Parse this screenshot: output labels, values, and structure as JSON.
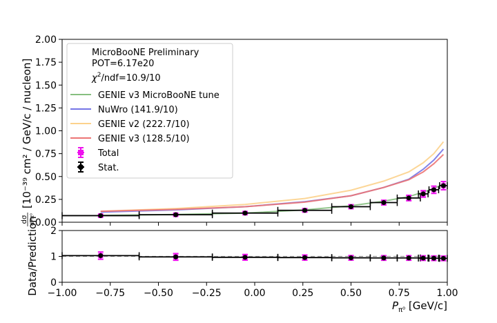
{
  "chart_data": [
    {
      "type": "line",
      "panel": "main",
      "ylabel_frac_num": "dσ",
      "ylabel_frac_den": "dPπ⁰",
      "ylabel_units": "[10⁻³⁹ cm² / GeV/c / nucleon]",
      "xlim": [
        -1.0,
        1.0
      ],
      "ylim": [
        0.0,
        2.0
      ],
      "xticks": [
        "−1.00",
        "−0.75",
        "−0.50",
        "−0.25",
        "0.00",
        "0.25",
        "0.50",
        "0.75",
        "1.00"
      ],
      "yticks": [
        "0.00",
        "0.25",
        "0.50",
        "0.75",
        "1.00",
        "1.25",
        "1.50",
        "1.75",
        "2.00"
      ],
      "legend": {
        "position": "top-left",
        "header": [
          "MicroBooNE Preliminary",
          "POT=6.17e20"
        ],
        "chi2_sym": "χ",
        "chi2_sup": "2",
        "chi2_rest": "/ndf=10.9/10"
      },
      "series": [
        {
          "name": "GENIE v3 MicroBooNE tune",
          "color": "#86bf7f",
          "x": [
            -0.8,
            -0.41,
            -0.05,
            0.26,
            0.5,
            0.67,
            0.8,
            0.875,
            0.93,
            0.98
          ],
          "y": [
            0.075,
            0.085,
            0.1,
            0.135,
            0.18,
            0.23,
            0.28,
            0.33,
            0.37,
            0.42
          ]
        },
        {
          "name": "NuWro (141.9/10)",
          "color": "#7474e6",
          "x": [
            -0.8,
            -0.41,
            -0.05,
            0.26,
            0.5,
            0.67,
            0.8,
            0.875,
            0.93,
            0.98
          ],
          "y": [
            0.11,
            0.135,
            0.17,
            0.225,
            0.29,
            0.38,
            0.47,
            0.58,
            0.68,
            0.8
          ]
        },
        {
          "name": "GENIE v2 (222.7/10)",
          "color": "#fcd28c",
          "x": [
            -0.8,
            -0.41,
            -0.05,
            0.26,
            0.5,
            0.67,
            0.8,
            0.875,
            0.93,
            0.98
          ],
          "y": [
            0.12,
            0.15,
            0.195,
            0.26,
            0.35,
            0.45,
            0.55,
            0.65,
            0.75,
            0.88
          ]
        },
        {
          "name": "GENIE v3 (128.5/10)",
          "color": "#ec7474",
          "x": [
            -0.8,
            -0.41,
            -0.05,
            0.26,
            0.5,
            0.67,
            0.8,
            0.875,
            0.93,
            0.98
          ],
          "y": [
            0.12,
            0.14,
            0.17,
            0.22,
            0.29,
            0.38,
            0.465,
            0.55,
            0.64,
            0.74
          ]
        }
      ],
      "data_points": [
        {
          "x": -0.8,
          "xlo": -1.0,
          "xhi": -0.6,
          "y": 0.072,
          "stat_err": 0.008,
          "total_err": 0.012
        },
        {
          "x": -0.41,
          "xlo": -0.6,
          "xhi": -0.22,
          "y": 0.082,
          "stat_err": 0.008,
          "total_err": 0.013
        },
        {
          "x": -0.05,
          "xlo": -0.22,
          "xhi": 0.12,
          "y": 0.1,
          "stat_err": 0.009,
          "total_err": 0.015
        },
        {
          "x": 0.26,
          "xlo": 0.12,
          "xhi": 0.4,
          "y": 0.13,
          "stat_err": 0.01,
          "total_err": 0.018
        },
        {
          "x": 0.5,
          "xlo": 0.4,
          "xhi": 0.6,
          "y": 0.17,
          "stat_err": 0.012,
          "total_err": 0.022
        },
        {
          "x": 0.67,
          "xlo": 0.6,
          "xhi": 0.74,
          "y": 0.215,
          "stat_err": 0.014,
          "total_err": 0.026
        },
        {
          "x": 0.8,
          "xlo": 0.74,
          "xhi": 0.86,
          "y": 0.265,
          "stat_err": 0.016,
          "total_err": 0.03
        },
        {
          "x": 0.875,
          "xlo": 0.85,
          "xhi": 0.9,
          "y": 0.31,
          "stat_err": 0.02,
          "total_err": 0.036
        },
        {
          "x": 0.93,
          "xlo": 0.905,
          "xhi": 0.955,
          "y": 0.355,
          "stat_err": 0.022,
          "total_err": 0.04
        },
        {
          "x": 0.98,
          "xlo": 0.96,
          "xhi": 1.0,
          "y": 0.4,
          "stat_err": 0.025,
          "total_err": 0.045
        }
      ],
      "data_legend": [
        {
          "name": "Total",
          "color": "#ee11ee"
        },
        {
          "name": "Stat.",
          "color": "#000000"
        }
      ]
    },
    {
      "type": "scatter",
      "panel": "ratio",
      "ylabel": "Data/Prediction",
      "xlabel_sym": "P",
      "xlabel_sub": "π⁰",
      "xlabel_units": " [GeV/c]",
      "xlim": [
        -1.0,
        1.0
      ],
      "ylim": [
        0,
        2
      ],
      "xticks": [
        "−1.00",
        "−0.75",
        "−0.50",
        "−0.25",
        "0.00",
        "0.25",
        "0.50",
        "0.75",
        "1.00"
      ],
      "yticks": [
        "0",
        "1",
        "2"
      ],
      "reference_line": 1.0,
      "points": [
        {
          "x": -0.8,
          "xlo": -1.0,
          "xhi": -0.6,
          "y": 1.03,
          "stat_err": 0.08,
          "total_err": 0.14
        },
        {
          "x": -0.41,
          "xlo": -0.6,
          "xhi": -0.22,
          "y": 0.98,
          "stat_err": 0.08,
          "total_err": 0.13
        },
        {
          "x": -0.05,
          "xlo": -0.22,
          "xhi": 0.12,
          "y": 0.965,
          "stat_err": 0.07,
          "total_err": 0.11
        },
        {
          "x": 0.26,
          "xlo": 0.12,
          "xhi": 0.4,
          "y": 0.955,
          "stat_err": 0.06,
          "total_err": 0.1
        },
        {
          "x": 0.5,
          "xlo": 0.4,
          "xhi": 0.6,
          "y": 0.945,
          "stat_err": 0.06,
          "total_err": 0.09
        },
        {
          "x": 0.67,
          "xlo": 0.6,
          "xhi": 0.74,
          "y": 0.94,
          "stat_err": 0.06,
          "total_err": 0.09
        },
        {
          "x": 0.8,
          "xlo": 0.74,
          "xhi": 0.86,
          "y": 0.94,
          "stat_err": 0.06,
          "total_err": 0.09
        },
        {
          "x": 0.875,
          "xlo": 0.85,
          "xhi": 0.9,
          "y": 0.935,
          "stat_err": 0.06,
          "total_err": 0.09
        },
        {
          "x": 0.93,
          "xlo": 0.905,
          "xhi": 0.955,
          "y": 0.93,
          "stat_err": 0.06,
          "total_err": 0.09
        },
        {
          "x": 0.98,
          "xlo": 0.96,
          "xhi": 1.0,
          "y": 0.925,
          "stat_err": 0.06,
          "total_err": 0.09
        }
      ]
    }
  ]
}
